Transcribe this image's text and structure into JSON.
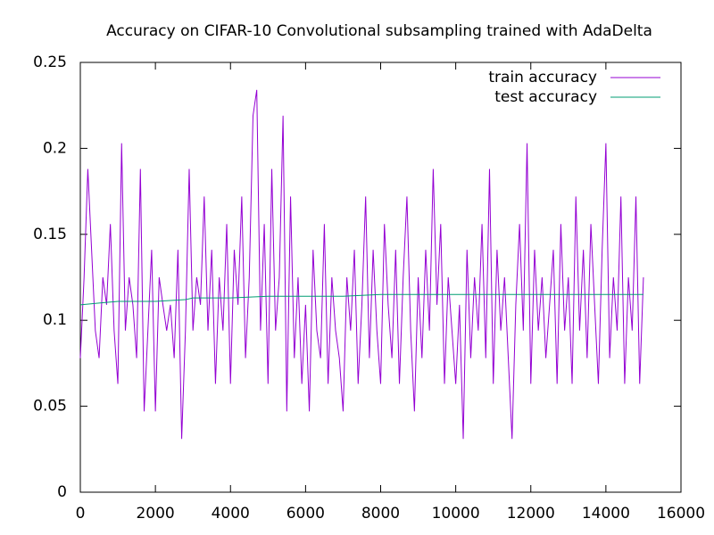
{
  "chart_data": {
    "type": "line",
    "title": "Accuracy on CIFAR-10 Convolutional subsampling trained with AdaDelta",
    "xlim": [
      0,
      16000
    ],
    "xticks": [
      0,
      2000,
      4000,
      6000,
      8000,
      10000,
      12000,
      14000,
      16000
    ],
    "ylim": [
      0,
      0.25
    ],
    "yticks": [
      0,
      0.05,
      0.1,
      0.15,
      0.2,
      0.25
    ],
    "grid": false,
    "legend": "top-right",
    "series": [
      {
        "name": "train accuracy",
        "color": "#9400d3",
        "x": [
          0,
          100,
          200,
          300,
          400,
          500,
          600,
          700,
          800,
          900,
          1000,
          1100,
          1200,
          1300,
          1400,
          1500,
          1600,
          1700,
          1800,
          1900,
          2000,
          2100,
          2200,
          2300,
          2400,
          2500,
          2600,
          2700,
          2800,
          2900,
          3000,
          3100,
          3200,
          3300,
          3400,
          3500,
          3600,
          3700,
          3800,
          3900,
          4000,
          4100,
          4200,
          4300,
          4400,
          4500,
          4600,
          4700,
          4800,
          4900,
          5000,
          5100,
          5200,
          5300,
          5400,
          5500,
          5600,
          5700,
          5800,
          5900,
          6000,
          6100,
          6200,
          6300,
          6400,
          6500,
          6600,
          6700,
          6800,
          6900,
          7000,
          7100,
          7200,
          7300,
          7400,
          7500,
          7600,
          7700,
          7800,
          7900,
          8000,
          8100,
          8200,
          8300,
          8400,
          8500,
          8600,
          8700,
          8800,
          8900,
          9000,
          9100,
          9200,
          9300,
          9400,
          9500,
          9600,
          9700,
          9800,
          9900,
          10000,
          10100,
          10200,
          10300,
          10400,
          10500,
          10600,
          10700,
          10800,
          10900,
          11000,
          11100,
          11200,
          11300,
          11400,
          11500,
          11600,
          11700,
          11800,
          11900,
          12000,
          12100,
          12200,
          12300,
          12400,
          12500,
          12600,
          12700,
          12800,
          12900,
          13000,
          13100,
          13200,
          13300,
          13400,
          13500,
          13600,
          13700,
          13800,
          13900,
          14000,
          14100,
          14200,
          14300,
          14400,
          14500,
          14600,
          14700,
          14800,
          14900,
          15000
        ],
        "values": [
          0.078,
          0.125,
          0.188,
          0.141,
          0.094,
          0.078,
          0.125,
          0.109,
          0.156,
          0.094,
          0.063,
          0.203,
          0.094,
          0.125,
          0.109,
          0.078,
          0.188,
          0.047,
          0.094,
          0.141,
          0.047,
          0.125,
          0.109,
          0.094,
          0.109,
          0.078,
          0.141,
          0.031,
          0.094,
          0.188,
          0.094,
          0.125,
          0.109,
          0.172,
          0.094,
          0.141,
          0.063,
          0.125,
          0.094,
          0.156,
          0.063,
          0.141,
          0.109,
          0.172,
          0.078,
          0.125,
          0.219,
          0.234,
          0.094,
          0.156,
          0.063,
          0.188,
          0.094,
          0.125,
          0.219,
          0.047,
          0.172,
          0.078,
          0.125,
          0.063,
          0.109,
          0.047,
          0.141,
          0.094,
          0.078,
          0.156,
          0.063,
          0.125,
          0.094,
          0.078,
          0.047,
          0.125,
          0.094,
          0.141,
          0.063,
          0.109,
          0.172,
          0.078,
          0.141,
          0.094,
          0.063,
          0.156,
          0.109,
          0.078,
          0.141,
          0.063,
          0.125,
          0.172,
          0.094,
          0.047,
          0.125,
          0.078,
          0.141,
          0.094,
          0.188,
          0.109,
          0.156,
          0.063,
          0.125,
          0.094,
          0.063,
          0.109,
          0.031,
          0.141,
          0.078,
          0.125,
          0.094,
          0.156,
          0.078,
          0.188,
          0.063,
          0.141,
          0.094,
          0.125,
          0.078,
          0.031,
          0.109,
          0.156,
          0.094,
          0.203,
          0.063,
          0.141,
          0.094,
          0.125,
          0.078,
          0.109,
          0.141,
          0.063,
          0.156,
          0.094,
          0.125,
          0.063,
          0.172,
          0.094,
          0.141,
          0.078,
          0.156,
          0.109,
          0.063,
          0.141,
          0.203,
          0.078,
          0.125,
          0.094,
          0.172,
          0.063,
          0.125,
          0.094,
          0.172,
          0.063,
          0.125
        ]
      },
      {
        "name": "test accuracy",
        "color": "#009e73",
        "x": [
          0,
          500,
          1000,
          2000,
          2800,
          3000,
          4000,
          5000,
          6000,
          7000,
          8000,
          10000,
          12000,
          15000
        ],
        "values": [
          0.109,
          0.11,
          0.111,
          0.111,
          0.112,
          0.113,
          0.113,
          0.114,
          0.114,
          0.114,
          0.115,
          0.115,
          0.115,
          0.115
        ]
      }
    ]
  }
}
